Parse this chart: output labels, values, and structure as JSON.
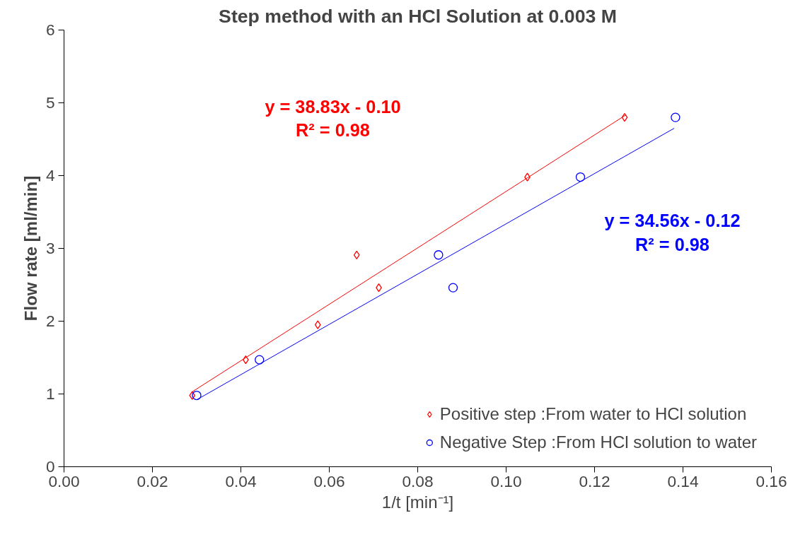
{
  "chart_data": {
    "type": "scatter",
    "title": "Step method with an HCl Solution at 0.003 M",
    "xlabel": "1/t [min⁻¹]",
    "ylabel": "Flow rate [ml/min]",
    "series": [
      {
        "name": "Positive step :From water to HCl solution",
        "color": "#ff0000",
        "marker": "diamond",
        "x": [
          0.029,
          0.0411,
          0.0574,
          0.0662,
          0.0712,
          0.1048,
          0.1268
        ],
        "values": [
          0.98,
          1.47,
          1.95,
          2.91,
          2.46,
          3.98,
          4.8
        ]
      },
      {
        "name": "Negative Step :From HCl solution to water",
        "color": "#0000ff",
        "marker": "circle",
        "x": [
          0.03,
          0.0442,
          0.0847,
          0.088,
          0.1168,
          0.1383
        ],
        "values": [
          0.98,
          1.47,
          2.91,
          2.46,
          3.98,
          4.8
        ]
      },
      {
        "type": "line",
        "color": "#ff0000",
        "x": [
          0.029,
          0.127
        ],
        "values": [
          1.03,
          4.83
        ]
      },
      {
        "type": "line",
        "color": "#0000ff",
        "x": [
          0.03,
          0.138
        ],
        "values": [
          0.92,
          4.65
        ]
      }
    ],
    "annotations": [
      "y = 38.83x - 0.10\nR² = 0.98",
      "y = 34.56x - 0.12\nR² = 0.98"
    ],
    "xlim": [
      0,
      0.16
    ],
    "ylim": [
      0,
      6
    ],
    "xticks": [
      {
        "value": 0,
        "label": "0.00"
      },
      {
        "value": 0.02,
        "label": "0.02"
      },
      {
        "value": 0.04,
        "label": "0.04"
      },
      {
        "value": 0.06,
        "label": "0.06"
      },
      {
        "value": 0.08,
        "label": "0.08"
      },
      {
        "value": 0.1,
        "label": "0.10"
      },
      {
        "value": 0.12,
        "label": "0.12"
      },
      {
        "value": 0.14,
        "label": "0.14"
      },
      {
        "value": 0.16,
        "label": "0.16"
      }
    ],
    "yticks": [
      0,
      1,
      2,
      3,
      4,
      5,
      6
    ],
    "grid": false,
    "legend": "bottom right"
  }
}
